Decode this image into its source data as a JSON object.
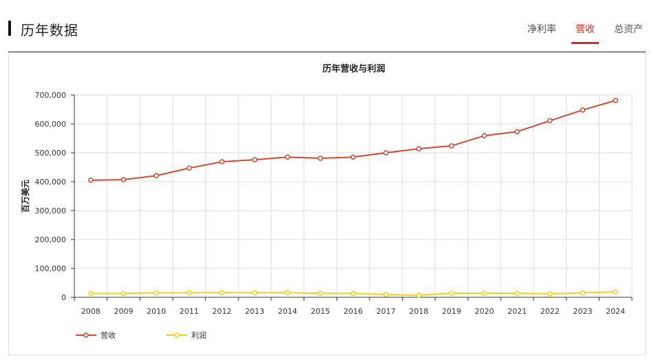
{
  "header": {
    "title": "历年数据",
    "tabs": [
      {
        "label": "净利率",
        "active": false
      },
      {
        "label": "营收",
        "active": true
      },
      {
        "label": "总资产",
        "active": false
      }
    ]
  },
  "colors": {
    "accent": "#c8302b",
    "revenue": "#cc4a32",
    "profit": "#f2d11f",
    "grid": "#dddddd",
    "axis": "#333333"
  },
  "chart_data": {
    "type": "line",
    "title": "历年营收与利润",
    "xlabel": "",
    "ylabel": "百万美元",
    "ylim": [
      0,
      700000
    ],
    "yticks": [
      "0",
      "100,000",
      "200,000",
      "300,000",
      "400,000",
      "500,000",
      "600,000",
      "700,000"
    ],
    "grid": true,
    "legend": "bottom-left",
    "categories": [
      "2008",
      "2009",
      "2010",
      "2011",
      "2012",
      "2013",
      "2014",
      "2015",
      "2016",
      "2017",
      "2018",
      "2019",
      "2020",
      "2021",
      "2022",
      "2023",
      "2024"
    ],
    "series": [
      {
        "name": "营收",
        "values": [
          405000,
          407000,
          421000,
          447000,
          469000,
          476000,
          485000,
          481000,
          485000,
          500000,
          514000,
          524000,
          559000,
          573000,
          611000,
          648000,
          681000
        ]
      },
      {
        "name": "利润",
        "values": [
          13000,
          13500,
          15500,
          16000,
          16000,
          16000,
          16000,
          14000,
          13500,
          9500,
          7000,
          14000,
          14000,
          14000,
          12000,
          15500,
          19000
        ]
      }
    ]
  }
}
